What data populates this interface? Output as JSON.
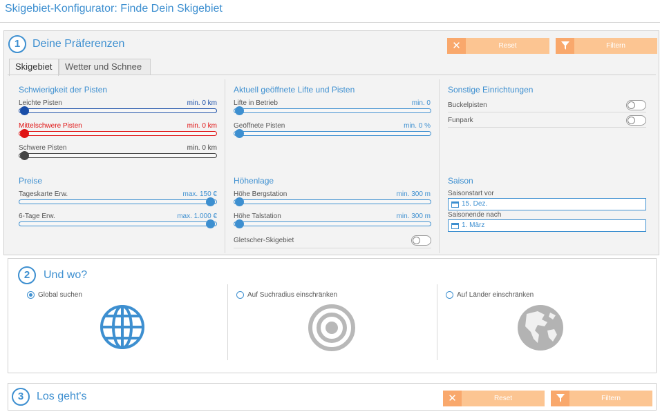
{
  "app": {
    "title": "Skigebiet-Konfigurator: Finde Dein Skigebiet"
  },
  "step1": {
    "number": "1",
    "title": "Deine Präferenzen",
    "reset_label": "Reset",
    "filter_label": "Filtern",
    "tabs": [
      {
        "label": "Skigebiet",
        "active": true
      },
      {
        "label": "Wetter und Schnee",
        "active": false
      }
    ],
    "difficulty": {
      "title": "Schwierigkeit der Pisten",
      "rows": [
        {
          "label": "Leichte Pisten",
          "value": "min. 0 km",
          "color": "#1a4ea8",
          "level": 0
        },
        {
          "label": "Mittelschwere Pisten",
          "value": "min. 0 km",
          "color": "#e01414",
          "level": 0
        },
        {
          "label": "Schwere Pisten",
          "value": "min. 0 km",
          "color": "#444444",
          "level": 0
        }
      ]
    },
    "lifts": {
      "title": "Aktuell geöffnete Lifte und Pisten",
      "rows": [
        {
          "label": "Lifte in Betrieb",
          "value": "min. 0",
          "level": 0
        },
        {
          "label": "Geöffnete Pisten",
          "value": "min. 0 %",
          "level": 0
        }
      ]
    },
    "other": {
      "title": "Sonstige Einrichtungen",
      "rows": [
        {
          "label": "Buckelpisten"
        },
        {
          "label": "Funpark"
        }
      ]
    },
    "prices": {
      "title": "Preise",
      "rows": [
        {
          "label": "Tageskarte Erw.",
          "value": "max. 150 €",
          "level": 1
        },
        {
          "label": "6-Tage Erw.",
          "value": "max. 1.000 €",
          "level": 1
        }
      ]
    },
    "altitude": {
      "title": "Höhenlage",
      "rows": [
        {
          "label": "Höhe Bergstation",
          "value": "min. 300 m",
          "level": 0
        },
        {
          "label": "Höhe Talstation",
          "value": "min. 300 m",
          "level": 0
        }
      ],
      "glacier_label": "Gletscher-Skigebiet"
    },
    "season": {
      "title": "Saison",
      "start_label": "Saisonstart vor",
      "start_value": "15. Dez.",
      "end_label": "Saisonende nach",
      "end_value": "1. März"
    }
  },
  "step2": {
    "number": "2",
    "title": "Und wo?",
    "options": [
      {
        "label": "Global suchen",
        "selected": true,
        "icon": "globe-icon"
      },
      {
        "label": "Auf Suchradius einschränken",
        "selected": false,
        "icon": "target-icon"
      },
      {
        "label": "Auf Länder einschränken",
        "selected": false,
        "icon": "earth-americas-icon"
      }
    ]
  },
  "step3": {
    "number": "3",
    "title": "Los geht's",
    "reset_label": "Reset",
    "filter_label": "Filtern"
  },
  "colors": {
    "accent": "#3d8fd0",
    "button": "#fcc592",
    "button_icon": "#f9a86c"
  }
}
